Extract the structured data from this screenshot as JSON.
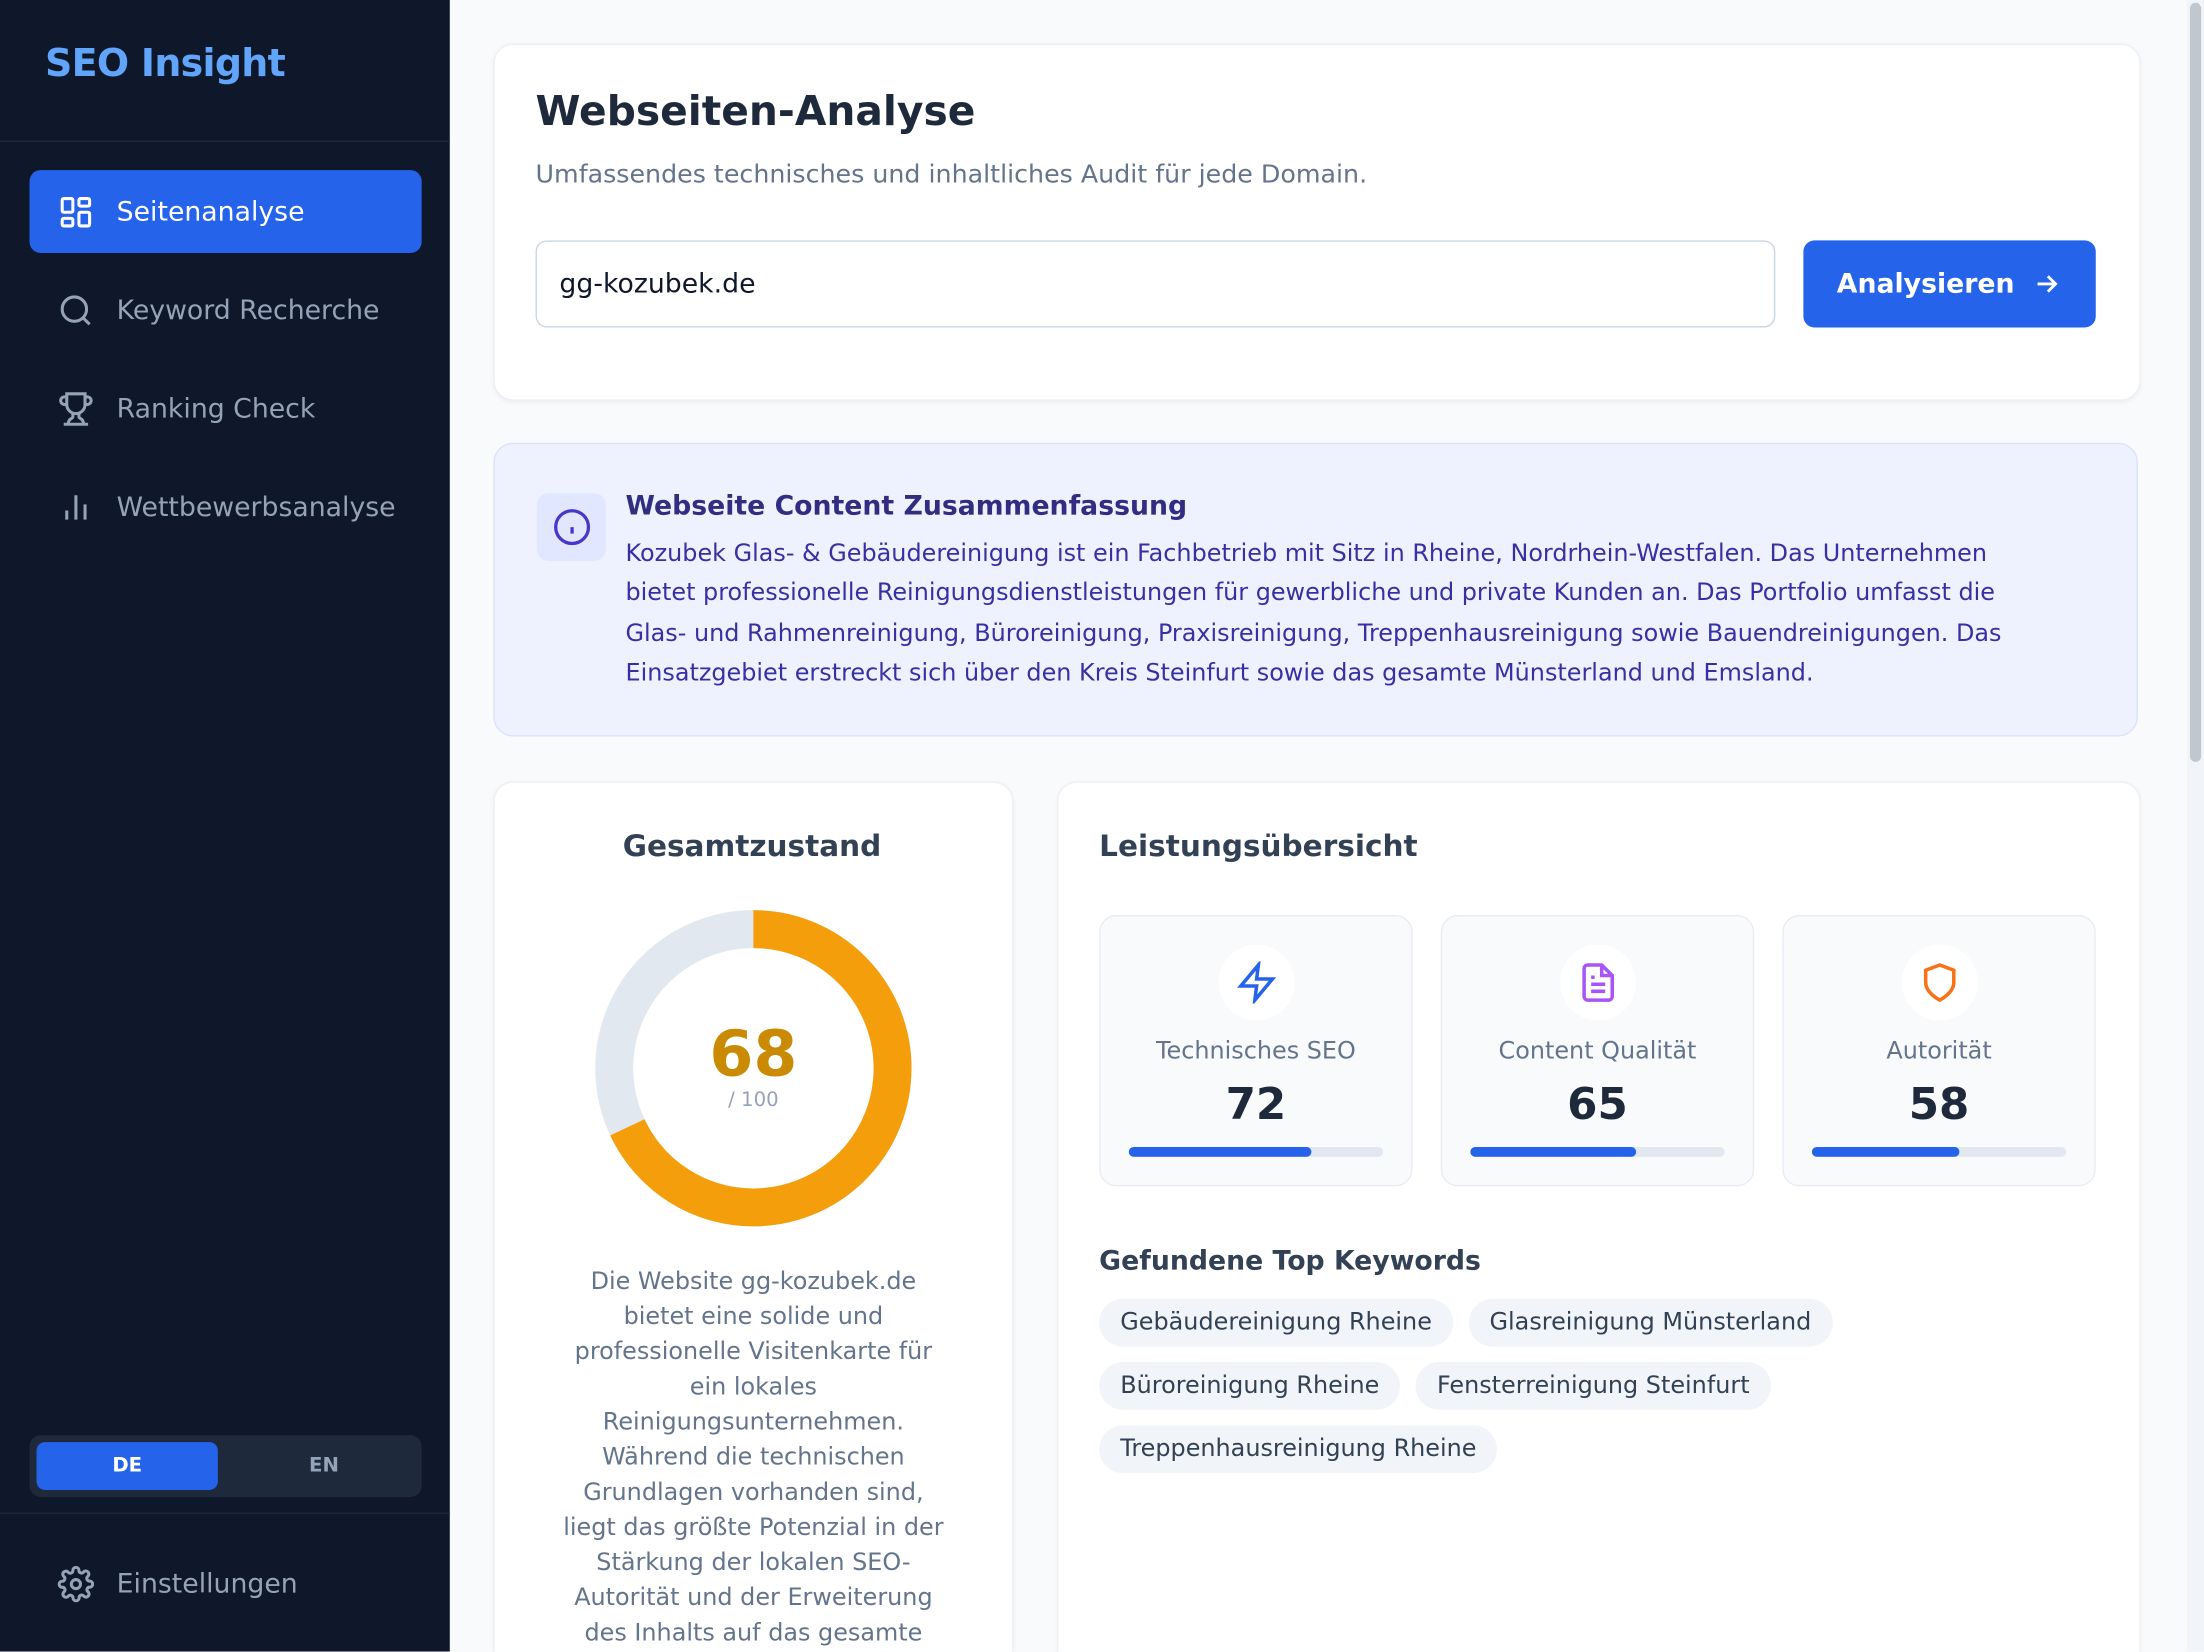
{
  "sidebar": {
    "brand": "SEO Insight",
    "nav": [
      "Seitenanalyse",
      "Keyword Recherche",
      "Ranking Check",
      "Wettbewerbsanalyse"
    ],
    "languages": [
      "DE",
      "EN"
    ],
    "settings": "Einstellungen"
  },
  "header": {
    "title": "Webseiten-Analyse",
    "subtitle": "Umfassendes technisches und inhaltliches Audit für jede Domain.",
    "input": "gg-kozubek.de",
    "button": "Analysieren"
  },
  "summary": {
    "title": "Webseite Content Zusammenfassung",
    "text": "Kozubek Glas- & Gebäudereinigung ist ein Fachbetrieb mit Sitz in Rheine, Nordrhein-Westfalen. Das Unternehmen bietet professionelle Reinigungsdienstleistungen für gewerbliche und private Kunden an. Das Portfolio umfasst die Glas- und Rahmenreinigung, Büroreinigung, Praxisreinigung, Treppenhausreinigung sowie Bauendreinigungen. Das Einsatzgebiet erstreckt sich über den Kreis Steinfurt sowie das gesamte Münsterland und Emsland."
  },
  "overall": {
    "title": "Gesamtzustand",
    "score": 68,
    "score_max": {
      "value": 100,
      "label": "/ 100"
    },
    "description": "Die Website gg-kozubek.de bietet eine solide und professionelle Visitenkarte für ein lokales Reinigungsunternehmen. Während die technischen Grundlagen vorhanden sind, liegt das größte Potenzial in der Stärkung der lokalen SEO-Autorität und der Erweiterung des Inhalts auf das gesamte"
  },
  "performance": {
    "title": "Leistungsübersicht",
    "metrics": [
      {
        "label": "Technisches SEO",
        "value": 72
      },
      {
        "label": "Content Qualität",
        "value": 65
      },
      {
        "label": "Autorität",
        "value": 58
      }
    ]
  },
  "keywords": {
    "title": "Gefundene Top Keywords",
    "items": [
      "Gebäudereinigung Rheine",
      "Glasreinigung Münsterland",
      "Büroreinigung Rheine",
      "Fensterreinigung Steinfurt",
      "Treppenhausreinigung Rheine"
    ]
  }
}
